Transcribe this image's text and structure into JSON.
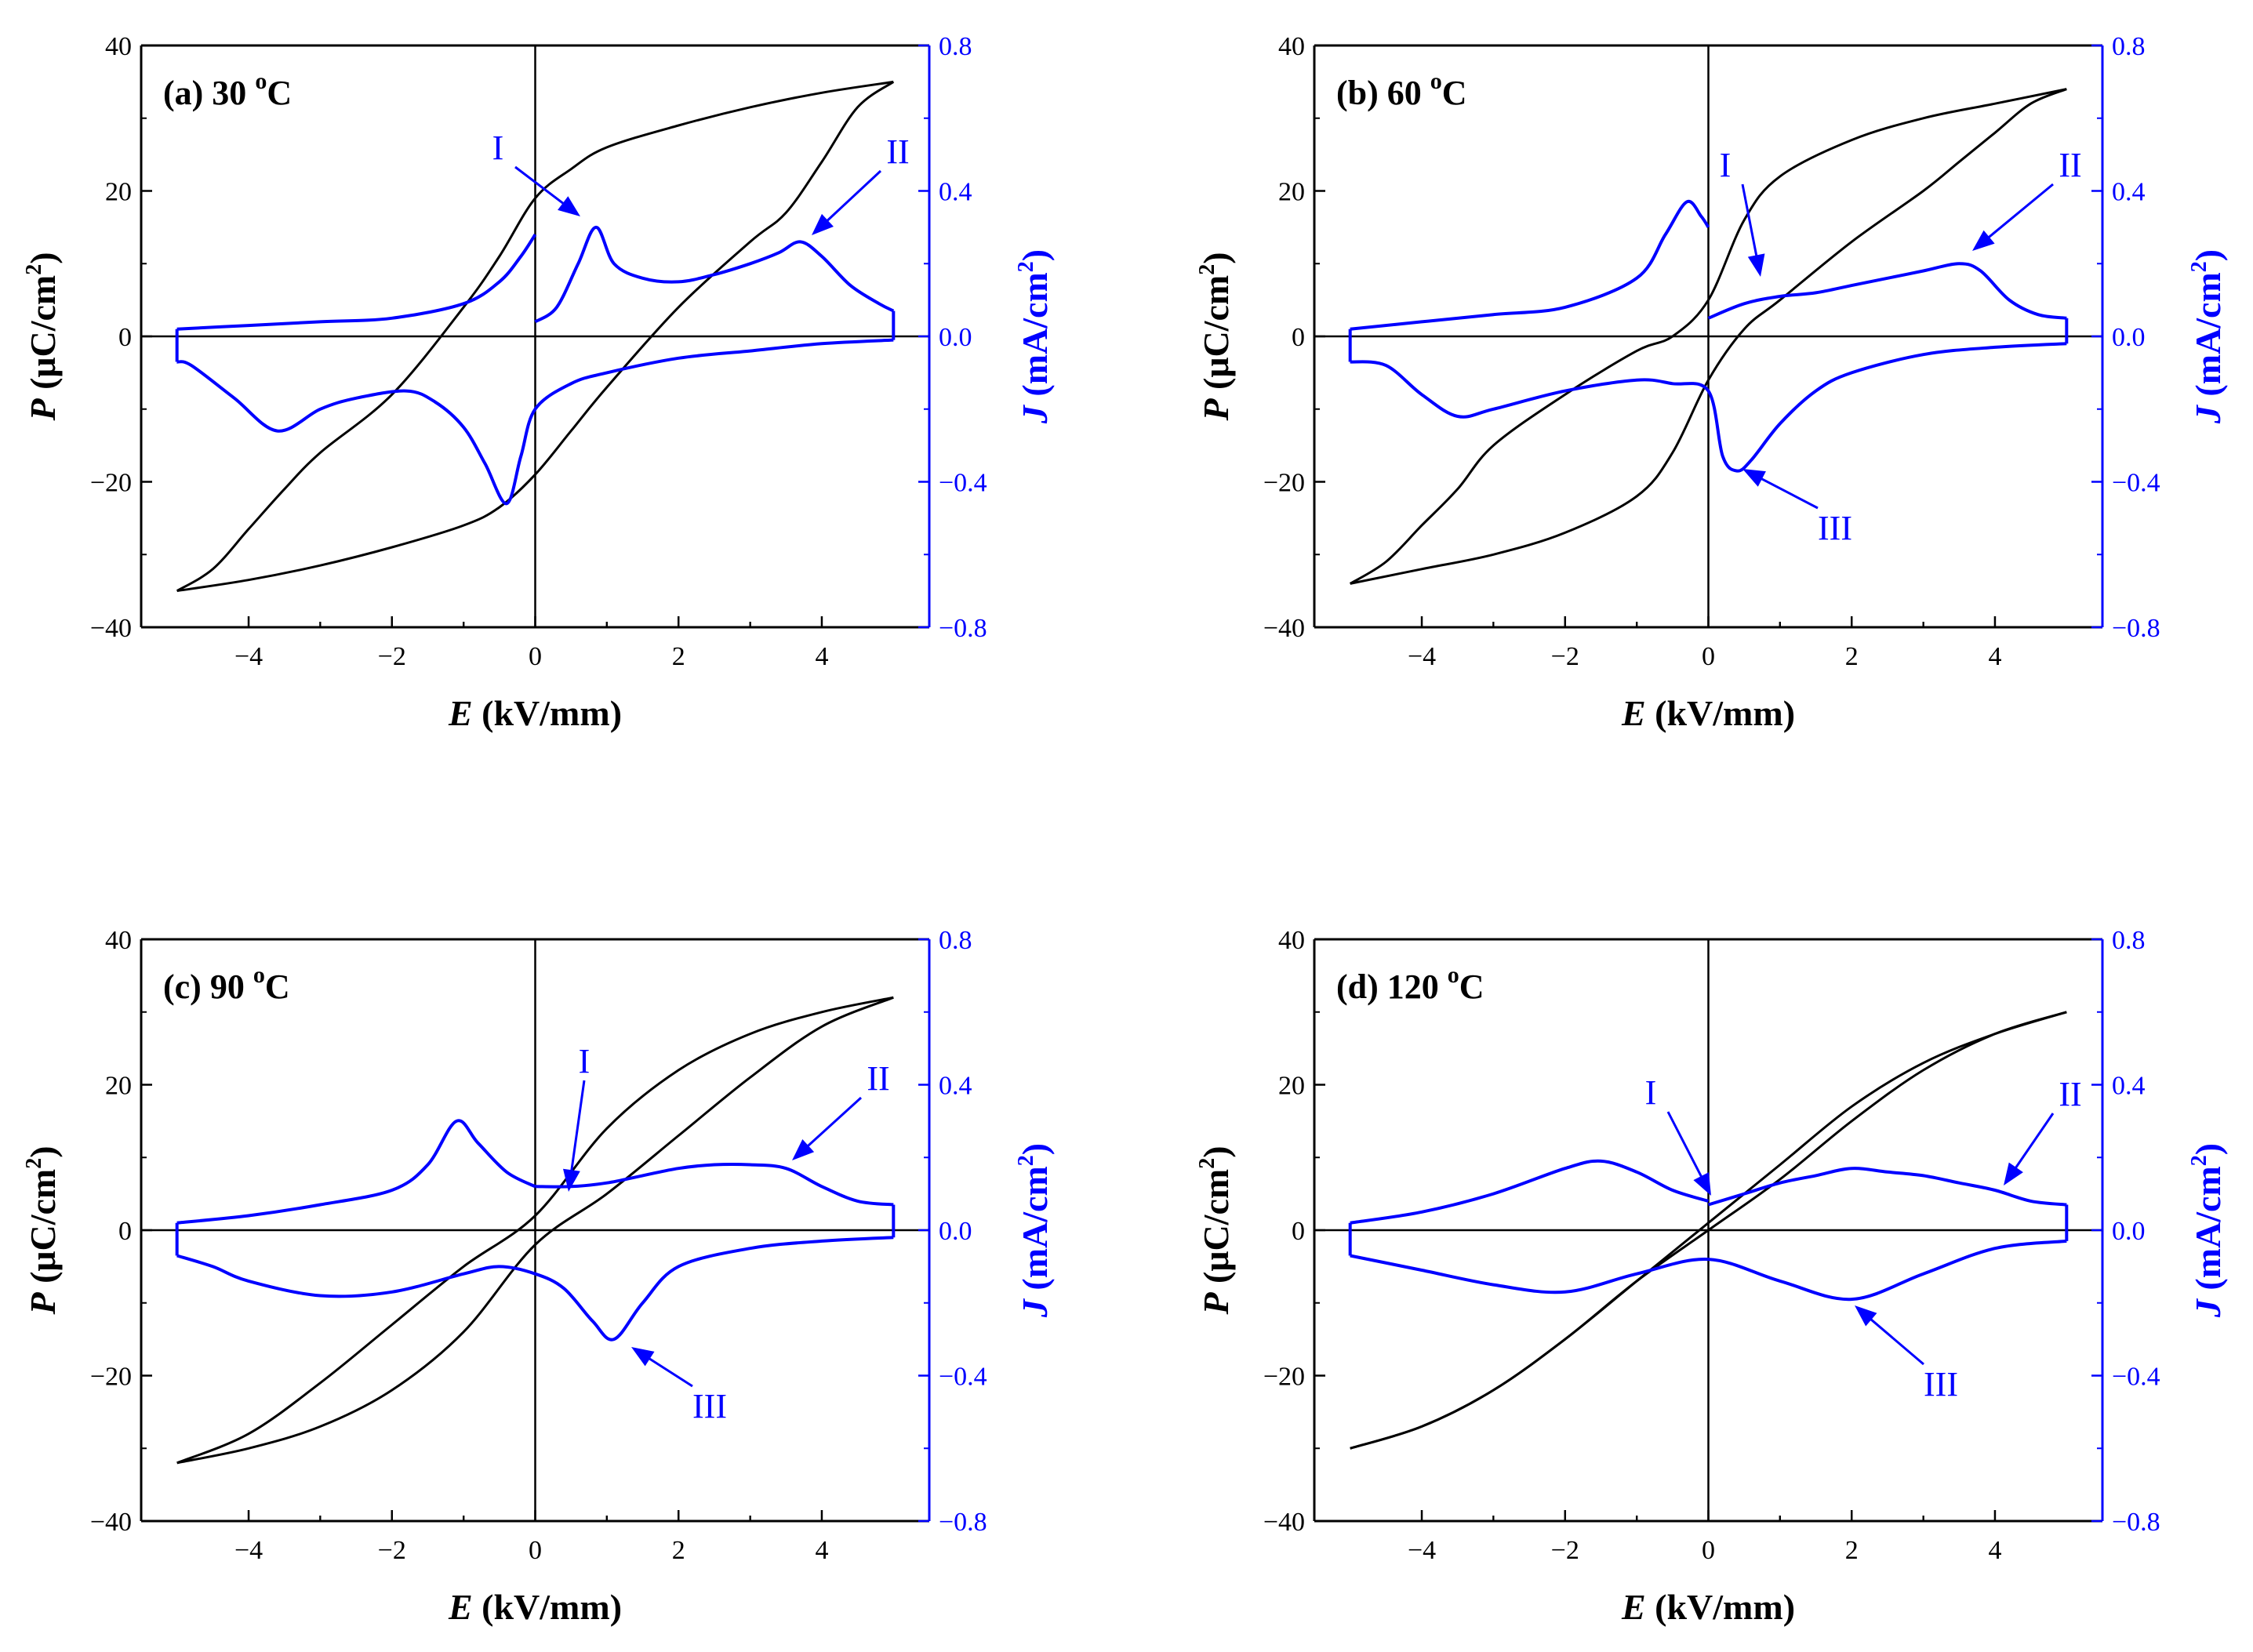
{
  "colors": {
    "polarization": "#000000",
    "current": "#0000ff",
    "zero_line": "#000000"
  },
  "chart_data": [
    {
      "type": "line",
      "panel_label": "(a) 30",
      "temp_unit": "C",
      "xlabel_var": "E",
      "xlabel_unit": "(kV/mm)",
      "ylabel_left_var": "P",
      "ylabel_left_unit": "(μC/cm",
      "ylabel_right_var": "J",
      "ylabel_right_unit": "(mA/cm",
      "xlim": [
        -5.5,
        5.5
      ],
      "ylim_left": [
        -40,
        40
      ],
      "ylim_right": [
        -0.8,
        0.8
      ],
      "xticks": [
        "−4",
        "−2",
        "0",
        "2",
        "4"
      ],
      "yticks_left": [
        "40",
        "20",
        "0",
        "−20",
        "−40"
      ],
      "yticks_right": [
        "0.8",
        "0.4",
        "0.0",
        "−0.4",
        "−0.8"
      ],
      "series": [
        {
          "axis": "left",
          "type": "line",
          "x": [
            -5.0,
            -4.0,
            -3.0,
            -2.0,
            -1.0,
            -0.5,
            0.0,
            0.5,
            1.0,
            2.0,
            3.0,
            3.5,
            4.0,
            4.5,
            5.0
          ],
          "y": [
            -35,
            -33.5,
            -31.5,
            -29,
            -26,
            -23.5,
            -19,
            -13,
            -7,
            4,
            13,
            17,
            24,
            31.5,
            35
          ]
        },
        {
          "axis": "left",
          "type": "line",
          "x": [
            5.0,
            4.0,
            3.0,
            2.0,
            1.0,
            0.5,
            0.0,
            -0.5,
            -1.0,
            -2.0,
            -3.0,
            -3.5,
            -4.0,
            -4.5,
            -5.0
          ],
          "y": [
            35,
            33.5,
            31.5,
            29,
            26,
            23,
            19,
            11,
            4,
            -8,
            -16,
            -21,
            -26.5,
            -32,
            -35
          ]
        },
        {
          "axis": "right",
          "type": "line",
          "x": [
            0.0,
            0.3,
            0.6,
            0.85,
            1.1,
            1.5,
            2.0,
            2.5,
            3.0,
            3.4,
            3.7,
            4.0,
            4.4,
            4.8,
            5.0
          ],
          "y": [
            0.04,
            0.08,
            0.2,
            0.3,
            0.2,
            0.16,
            0.15,
            0.17,
            0.2,
            0.23,
            0.26,
            0.22,
            0.14,
            0.09,
            0.07
          ]
        },
        {
          "axis": "right",
          "type": "line",
          "x": [
            5.0,
            4.0,
            3.0,
            2.0,
            1.0,
            0.5,
            0.0,
            -0.2,
            -0.4,
            -0.7,
            -1.0,
            -1.4,
            -1.8,
            -2.5,
            -3.0,
            -3.6,
            -4.2,
            -4.8,
            -5.0
          ],
          "y": [
            -0.01,
            -0.02,
            -0.04,
            -0.06,
            -0.1,
            -0.13,
            -0.2,
            -0.33,
            -0.46,
            -0.35,
            -0.25,
            -0.18,
            -0.15,
            -0.17,
            -0.2,
            -0.26,
            -0.17,
            -0.08,
            -0.07
          ]
        },
        {
          "axis": "right",
          "type": "line",
          "x": [
            -5.0,
            -4.0,
            -3.0,
            -2.0,
            -1.0,
            -0.5,
            -0.2,
            0.0
          ],
          "y": [
            0.02,
            0.03,
            0.04,
            0.05,
            0.09,
            0.15,
            0.22,
            0.28
          ]
        }
      ],
      "annotations": [
        {
          "text": "I",
          "x": 0.85,
          "y": 0.3
        },
        {
          "text": "II",
          "x": 3.7,
          "y": 0.26
        }
      ]
    },
    {
      "type": "line",
      "panel_label": "(b) 60",
      "temp_unit": "C",
      "xlabel_var": "E",
      "xlabel_unit": "(kV/mm)",
      "ylabel_left_var": "P",
      "ylabel_left_unit": "(μC/cm",
      "ylabel_right_var": "J",
      "ylabel_right_unit": "(mA/cm",
      "xlim": [
        -5.5,
        5.5
      ],
      "ylim_left": [
        -40,
        40
      ],
      "ylim_right": [
        -0.8,
        0.8
      ],
      "xticks": [
        "−4",
        "−2",
        "0",
        "2",
        "4"
      ],
      "yticks_left": [
        "40",
        "20",
        "0",
        "−20",
        "−40"
      ],
      "yticks_right": [
        "0.8",
        "0.4",
        "0.0",
        "−0.4",
        "−0.8"
      ],
      "series": [
        {
          "axis": "left",
          "type": "line",
          "x": [
            -5.0,
            -4.0,
            -3.0,
            -2.0,
            -1.0,
            -0.5,
            0.0,
            0.5,
            1.0,
            2.0,
            3.0,
            3.5,
            4.0,
            4.5,
            5.0
          ],
          "y": [
            -34,
            -32,
            -30,
            -27,
            -22,
            -16,
            -6,
            1,
            5,
            13,
            20,
            24,
            28,
            32,
            34
          ]
        },
        {
          "axis": "left",
          "type": "line",
          "x": [
            5.0,
            4.0,
            3.0,
            2.0,
            1.0,
            0.5,
            0.0,
            -0.5,
            -1.0,
            -2.0,
            -3.0,
            -3.5,
            -4.0,
            -4.5,
            -5.0
          ],
          "y": [
            34,
            32,
            30,
            27,
            22,
            16,
            5,
            0,
            -2,
            -8,
            -15,
            -21,
            -26,
            -31,
            -34
          ]
        },
        {
          "axis": "right",
          "type": "line",
          "x": [
            0.0,
            0.5,
            1.0,
            1.5,
            2.0,
            2.5,
            3.0,
            3.5,
            3.8,
            4.2,
            4.6,
            5.0
          ],
          "y": [
            0.05,
            0.09,
            0.11,
            0.12,
            0.14,
            0.16,
            0.18,
            0.2,
            0.18,
            0.1,
            0.06,
            0.05
          ]
        },
        {
          "axis": "right",
          "type": "line",
          "x": [
            5.0,
            4.0,
            3.0,
            2.0,
            1.5,
            1.0,
            0.6,
            0.4,
            0.2,
            0.0,
            -0.5,
            -1.0,
            -2.0,
            -3.0,
            -3.5,
            -4.0,
            -4.5,
            -5.0
          ],
          "y": [
            -0.02,
            -0.03,
            -0.05,
            -0.1,
            -0.15,
            -0.24,
            -0.34,
            -0.37,
            -0.33,
            -0.15,
            -0.13,
            -0.12,
            -0.15,
            -0.2,
            -0.22,
            -0.16,
            -0.08,
            -0.07
          ]
        },
        {
          "axis": "right",
          "type": "line",
          "x": [
            -5.0,
            -4.0,
            -3.0,
            -2.0,
            -1.0,
            -0.6,
            -0.3,
            -0.1,
            0.0
          ],
          "y": [
            0.02,
            0.04,
            0.06,
            0.08,
            0.16,
            0.28,
            0.37,
            0.33,
            0.3
          ]
        }
      ],
      "annotations": [
        {
          "text": "I",
          "x": 0.7,
          "y": 0.08
        },
        {
          "text": "II",
          "x": 3.5,
          "y": 0.2
        },
        {
          "text": "III",
          "x": 0.5,
          "y": -0.37
        }
      ]
    },
    {
      "type": "line",
      "panel_label": "(c) 90",
      "temp_unit": "C",
      "xlabel_var": "E",
      "xlabel_unit": "(kV/mm)",
      "ylabel_left_var": "P",
      "ylabel_left_unit": "(μC/cm",
      "ylabel_right_var": "J",
      "ylabel_right_unit": "(mA/cm",
      "xlim": [
        -5.5,
        5.5
      ],
      "ylim_left": [
        -40,
        40
      ],
      "ylim_right": [
        -0.8,
        0.8
      ],
      "xticks": [
        "−4",
        "−2",
        "0",
        "2",
        "4"
      ],
      "yticks_left": [
        "40",
        "20",
        "0",
        "−20",
        "−40"
      ],
      "yticks_right": [
        "0.8",
        "0.4",
        "0.0",
        "−0.4",
        "−0.8"
      ],
      "series": [
        {
          "axis": "left",
          "type": "line",
          "x": [
            -5.0,
            -4.0,
            -3.0,
            -2.0,
            -1.0,
            0.0,
            1.0,
            2.0,
            3.0,
            4.0,
            5.0
          ],
          "y": [
            -32,
            -30,
            -27,
            -22,
            -14,
            -2,
            5,
            13,
            21,
            28,
            32
          ]
        },
        {
          "axis": "left",
          "type": "line",
          "x": [
            5.0,
            4.0,
            3.0,
            2.0,
            1.0,
            0.0,
            -1.0,
            -2.0,
            -3.0,
            -4.0,
            -5.0
          ],
          "y": [
            32,
            30,
            27,
            22,
            14,
            2,
            -5,
            -13,
            -21,
            -28,
            -32
          ]
        },
        {
          "axis": "right",
          "type": "line",
          "x": [
            0.0,
            0.5,
            1.0,
            1.5,
            2.0,
            2.5,
            3.0,
            3.5,
            4.0,
            4.5,
            5.0
          ],
          "y": [
            0.12,
            0.12,
            0.13,
            0.15,
            0.17,
            0.18,
            0.18,
            0.17,
            0.12,
            0.08,
            0.07
          ]
        },
        {
          "axis": "right",
          "type": "line",
          "x": [
            5.0,
            4.0,
            3.0,
            2.0,
            1.5,
            1.1,
            0.8,
            0.4,
            0.0,
            -0.5,
            -1.0,
            -2.0,
            -3.0,
            -4.0,
            -4.5,
            -5.0
          ],
          "y": [
            -0.02,
            -0.03,
            -0.05,
            -0.1,
            -0.2,
            -0.3,
            -0.25,
            -0.16,
            -0.12,
            -0.1,
            -0.12,
            -0.17,
            -0.18,
            -0.14,
            -0.1,
            -0.07
          ]
        },
        {
          "axis": "right",
          "type": "line",
          "x": [
            -5.0,
            -4.0,
            -3.0,
            -2.0,
            -1.5,
            -1.1,
            -0.8,
            -0.4,
            0.0
          ],
          "y": [
            0.02,
            0.04,
            0.07,
            0.11,
            0.18,
            0.3,
            0.24,
            0.16,
            0.12
          ]
        }
      ],
      "annotations": [
        {
          "text": "I",
          "x": 0.45,
          "y": 0.1
        },
        {
          "text": "II",
          "x": 3.4,
          "y": 0.18
        },
        {
          "text": "III",
          "x": 1.1,
          "y": -0.3
        }
      ]
    },
    {
      "type": "line",
      "panel_label": "(d) 120",
      "temp_unit": "C",
      "xlabel_var": "E",
      "xlabel_unit": "(kV/mm)",
      "ylabel_left_var": "P",
      "ylabel_left_unit": "(μC/cm",
      "ylabel_right_var": "J",
      "ylabel_right_unit": "(mA/cm",
      "xlim": [
        -5.5,
        5.5
      ],
      "ylim_left": [
        -40,
        40
      ],
      "ylim_right": [
        -0.8,
        0.8
      ],
      "xticks": [
        "−4",
        "−2",
        "0",
        "2",
        "4"
      ],
      "yticks_left": [
        "40",
        "20",
        "0",
        "−20",
        "−40"
      ],
      "yticks_right": [
        "0.8",
        "0.4",
        "0.0",
        "−0.4",
        "−0.8"
      ],
      "series": [
        {
          "axis": "left",
          "type": "line",
          "x": [
            -5.0,
            -4.0,
            -3.0,
            -2.0,
            -1.0,
            0.0,
            1.0,
            2.0,
            3.0,
            4.0,
            5.0
          ],
          "y": [
            -30,
            -27,
            -22,
            -15,
            -7,
            0,
            7,
            15,
            22,
            27,
            30
          ]
        },
        {
          "axis": "left",
          "type": "line",
          "x": [
            5.0,
            4.0,
            3.0,
            2.0,
            1.0,
            0.0,
            -1.0,
            -2.0,
            -3.0,
            -4.0,
            -5.0
          ],
          "y": [
            30,
            27,
            23,
            17,
            9,
            1,
            -7,
            -15,
            -22,
            -27,
            -30
          ]
        },
        {
          "axis": "right",
          "type": "line",
          "x": [
            0.0,
            0.5,
            1.0,
            1.5,
            2.0,
            2.5,
            3.0,
            3.5,
            4.0,
            4.5,
            5.0
          ],
          "y": [
            0.07,
            0.1,
            0.13,
            0.15,
            0.17,
            0.16,
            0.15,
            0.13,
            0.11,
            0.08,
            0.07
          ]
        },
        {
          "axis": "right",
          "type": "line",
          "x": [
            5.0,
            4.0,
            3.0,
            2.0,
            1.0,
            0.0,
            -1.0,
            -2.0,
            -3.0,
            -4.0,
            -5.0
          ],
          "y": [
            -0.03,
            -0.05,
            -0.12,
            -0.19,
            -0.14,
            -0.08,
            -0.12,
            -0.17,
            -0.15,
            -0.11,
            -0.07
          ]
        },
        {
          "axis": "right",
          "type": "line",
          "x": [
            -5.0,
            -4.0,
            -3.0,
            -2.0,
            -1.5,
            -1.0,
            -0.5,
            0.0
          ],
          "y": [
            0.02,
            0.05,
            0.1,
            0.17,
            0.19,
            0.16,
            0.11,
            0.08
          ]
        }
      ],
      "annotations": [
        {
          "text": "I",
          "x": 0.0,
          "y": 0.08
        },
        {
          "text": "II",
          "x": 4.0,
          "y": 0.12
        },
        {
          "text": "III",
          "x": 2.0,
          "y": -0.19
        }
      ]
    }
  ]
}
